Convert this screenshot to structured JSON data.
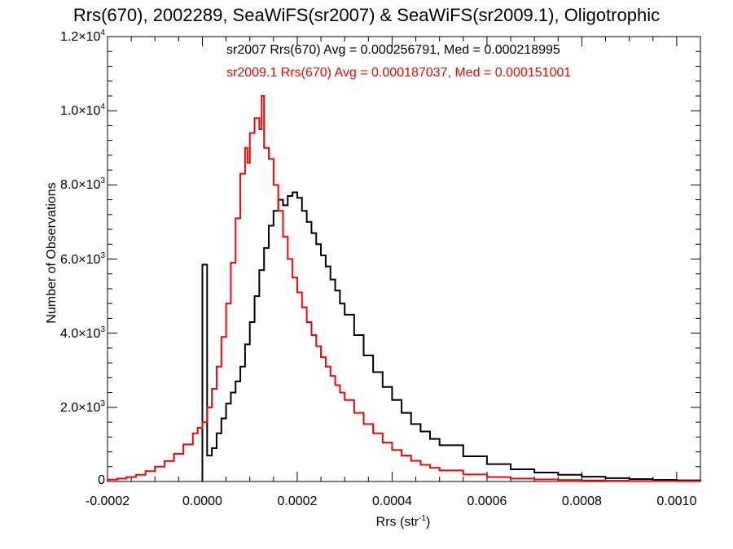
{
  "chart_data": {
    "type": "line",
    "title": "Rrs(670), 2002289, SeaWiFS(sr2007) & SeaWiFS(sr2009.1), Oligotrophic",
    "xlabel": "Rrs (str",
    "xlabel_exponent": "-1",
    "xlabel_close": ")",
    "ylabel": "Number of Observations",
    "xlim": [
      -0.0002,
      0.00105
    ],
    "ylim": [
      0,
      12000
    ],
    "x_ticks": [
      "-0.0002",
      "0.0000",
      "0.0002",
      "0.0004",
      "0.0006",
      "0.0008",
      "0.0010"
    ],
    "y_ticks": [
      {
        "mantissa": "0",
        "exp": ""
      },
      {
        "mantissa": "2.0×10",
        "exp": "3"
      },
      {
        "mantissa": "4.0×10",
        "exp": "3"
      },
      {
        "mantissa": "6.0×10",
        "exp": "3"
      },
      {
        "mantissa": "8.0×10",
        "exp": "3"
      },
      {
        "mantissa": "1.0×10",
        "exp": "4"
      },
      {
        "mantissa": "1.2×10",
        "exp": "4"
      }
    ],
    "annotations": [
      {
        "text": "sr2007 Rrs(670) Avg = 0.000256791, Med = 0.000218995",
        "color": "#000000"
      },
      {
        "text": "sr2009.1 Rrs(670) Avg = 0.000187037, Med = 0.000151001",
        "color": "#ff0000"
      }
    ],
    "series": [
      {
        "name": "sr2007",
        "color": "#000000",
        "x": [
          0.0,
          1e-05,
          2e-05,
          3e-05,
          4e-05,
          5e-05,
          6e-05,
          7e-05,
          8e-05,
          9e-05,
          0.0001,
          0.00011,
          0.00012,
          0.00013,
          0.00014,
          0.00015,
          0.00016,
          0.00017,
          0.00018,
          0.00019,
          0.0002,
          0.00021,
          0.00022,
          0.00023,
          0.00024,
          0.00025,
          0.00026,
          0.00027,
          0.00028,
          0.00029,
          0.0003,
          0.00032,
          0.00034,
          0.00036,
          0.00038,
          0.0004,
          0.00042,
          0.00044,
          0.00046,
          0.00048,
          0.0005,
          0.00055,
          0.0006,
          0.00065,
          0.0007,
          0.00075,
          0.0008,
          0.00085,
          0.0009,
          0.00095,
          0.001,
          0.00105
        ],
        "values": [
          5850,
          700,
          900,
          1300,
          1700,
          2100,
          2400,
          2700,
          3100,
          3700,
          4300,
          5000,
          5700,
          6300,
          6900,
          7300,
          7600,
          7450,
          7700,
          7800,
          7650,
          7300,
          7000,
          6700,
          6400,
          6100,
          5800,
          5450,
          5150,
          4800,
          4500,
          3950,
          3400,
          2950,
          2550,
          2200,
          1850,
          1550,
          1350,
          1150,
          980,
          680,
          470,
          330,
          240,
          180,
          130,
          90,
          65,
          45,
          30,
          20
        ]
      },
      {
        "name": "sr2009.1",
        "color": "#ff0000",
        "x": [
          -0.0002,
          -0.00018,
          -0.00016,
          -0.00014,
          -0.00012,
          -0.0001,
          -8e-05,
          -6e-05,
          -4e-05,
          -2e-05,
          -1e-05,
          0.0,
          1e-05,
          2e-05,
          3e-05,
          4e-05,
          5e-05,
          6e-05,
          7e-05,
          8e-05,
          9e-05,
          9.5e-05,
          0.0001,
          0.00011,
          0.00012,
          0.000125,
          0.00013,
          0.00014,
          0.00015,
          0.00016,
          0.00017,
          0.00018,
          0.00019,
          0.0002,
          0.00021,
          0.00022,
          0.00023,
          0.00024,
          0.00025,
          0.00026,
          0.00027,
          0.00028,
          0.00029,
          0.0003,
          0.00032,
          0.00034,
          0.00036,
          0.00038,
          0.0004,
          0.00042,
          0.00044,
          0.00046,
          0.00048,
          0.0005,
          0.00055,
          0.0006,
          0.00065,
          0.0007,
          0.00075,
          0.0008,
          0.00085,
          0.0009,
          0.00095,
          0.001,
          0.00105
        ],
        "values": [
          50,
          80,
          120,
          180,
          280,
          400,
          550,
          750,
          1000,
          1300,
          1450,
          1600,
          2000,
          2500,
          3100,
          3900,
          4800,
          5900,
          7100,
          8300,
          9000,
          8600,
          9400,
          9800,
          9500,
          10400,
          9000,
          8700,
          8000,
          7300,
          6600,
          6000,
          5500,
          5100,
          4700,
          4300,
          3950,
          3650,
          3350,
          3100,
          2850,
          2600,
          2400,
          2200,
          1850,
          1550,
          1300,
          1050,
          850,
          700,
          560,
          450,
          370,
          300,
          190,
          120,
          80,
          55,
          40,
          28,
          20,
          14,
          10,
          7,
          5
        ]
      }
    ]
  }
}
